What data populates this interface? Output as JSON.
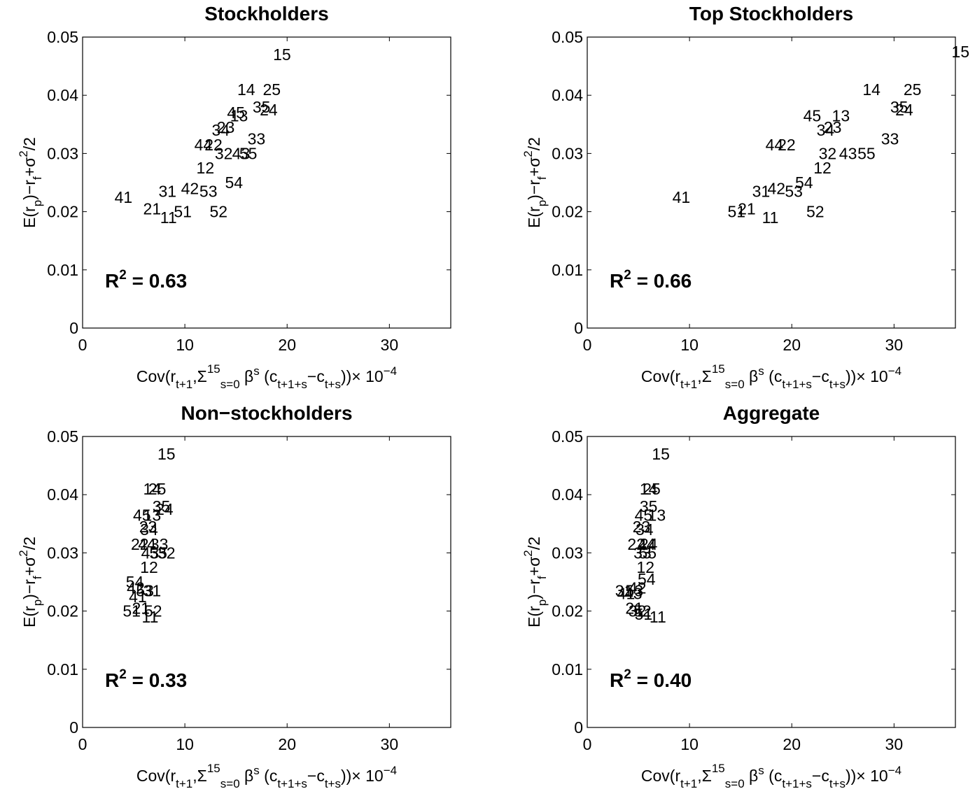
{
  "chart_data": [
    {
      "type": "scatter",
      "title": "Stockholders",
      "annotation": "R^2 = 0.63",
      "r2_label": "R",
      "r2_sup": "2",
      "r2_value": " = 0.63",
      "xlim": [
        0,
        36
      ],
      "ylim": [
        0,
        0.05
      ],
      "xticks": [
        "0",
        "10",
        "20",
        "30"
      ],
      "xtick_values": [
        0,
        10,
        20,
        30
      ],
      "yticks": [
        "0",
        "0.01",
        "0.02",
        "0.03",
        "0.04",
        "0.05"
      ],
      "ytick_values": [
        0,
        0.01,
        0.02,
        0.03,
        0.04,
        0.05
      ],
      "points": [
        {
          "label": "15",
          "x": 19.5,
          "y": 0.047
        },
        {
          "label": "14",
          "x": 16.0,
          "y": 0.041
        },
        {
          "label": "25",
          "x": 18.5,
          "y": 0.041
        },
        {
          "label": "35",
          "x": 17.5,
          "y": 0.038
        },
        {
          "label": "24",
          "x": 18.2,
          "y": 0.0375
        },
        {
          "label": "45",
          "x": 15.0,
          "y": 0.037
        },
        {
          "label": "13",
          "x": 15.3,
          "y": 0.0365
        },
        {
          "label": "23",
          "x": 14.0,
          "y": 0.0345
        },
        {
          "label": "34",
          "x": 13.5,
          "y": 0.034
        },
        {
          "label": "33",
          "x": 17.0,
          "y": 0.0325
        },
        {
          "label": "44",
          "x": 11.8,
          "y": 0.0315
        },
        {
          "label": "22",
          "x": 12.8,
          "y": 0.0315
        },
        {
          "label": "32",
          "x": 13.8,
          "y": 0.03
        },
        {
          "label": "43",
          "x": 15.5,
          "y": 0.03
        },
        {
          "label": "55",
          "x": 16.2,
          "y": 0.03
        },
        {
          "label": "12",
          "x": 12.0,
          "y": 0.0275
        },
        {
          "label": "54",
          "x": 14.8,
          "y": 0.025
        },
        {
          "label": "42",
          "x": 10.5,
          "y": 0.024
        },
        {
          "label": "31",
          "x": 8.3,
          "y": 0.0235
        },
        {
          "label": "53",
          "x": 12.3,
          "y": 0.0235
        },
        {
          "label": "41",
          "x": 4.0,
          "y": 0.0225
        },
        {
          "label": "21",
          "x": 6.8,
          "y": 0.0205
        },
        {
          "label": "51",
          "x": 9.8,
          "y": 0.02
        },
        {
          "label": "52",
          "x": 13.3,
          "y": 0.02
        },
        {
          "label": "11",
          "x": 8.4,
          "y": 0.019
        }
      ]
    },
    {
      "type": "scatter",
      "title": "Top Stockholders",
      "annotation": "R^2 = 0.66",
      "r2_label": "R",
      "r2_sup": "2",
      "r2_value": " = 0.66",
      "xlim": [
        0,
        36
      ],
      "ylim": [
        0,
        0.05
      ],
      "xticks": [
        "0",
        "10",
        "20",
        "30"
      ],
      "xtick_values": [
        0,
        10,
        20,
        30
      ],
      "yticks": [
        "0",
        "0.01",
        "0.02",
        "0.03",
        "0.04",
        "0.05"
      ],
      "ytick_values": [
        0,
        0.01,
        0.02,
        0.03,
        0.04,
        0.05
      ],
      "points": [
        {
          "label": "15",
          "x": 36.5,
          "y": 0.0475
        },
        {
          "label": "14",
          "x": 27.8,
          "y": 0.041
        },
        {
          "label": "25",
          "x": 31.8,
          "y": 0.041
        },
        {
          "label": "35",
          "x": 30.5,
          "y": 0.038
        },
        {
          "label": "24",
          "x": 31.0,
          "y": 0.0375
        },
        {
          "label": "45",
          "x": 22.0,
          "y": 0.0365
        },
        {
          "label": "13",
          "x": 24.8,
          "y": 0.0365
        },
        {
          "label": "23",
          "x": 24.0,
          "y": 0.0345
        },
        {
          "label": "34",
          "x": 23.3,
          "y": 0.034
        },
        {
          "label": "33",
          "x": 29.6,
          "y": 0.0325
        },
        {
          "label": "44",
          "x": 18.3,
          "y": 0.0315
        },
        {
          "label": "22",
          "x": 19.5,
          "y": 0.0315
        },
        {
          "label": "32",
          "x": 23.5,
          "y": 0.03
        },
        {
          "label": "43",
          "x": 25.5,
          "y": 0.03
        },
        {
          "label": "55",
          "x": 27.3,
          "y": 0.03
        },
        {
          "label": "12",
          "x": 23.0,
          "y": 0.0275
        },
        {
          "label": "54",
          "x": 21.2,
          "y": 0.025
        },
        {
          "label": "42",
          "x": 18.5,
          "y": 0.024
        },
        {
          "label": "31",
          "x": 17.0,
          "y": 0.0235
        },
        {
          "label": "53",
          "x": 20.2,
          "y": 0.0235
        },
        {
          "label": "41",
          "x": 9.2,
          "y": 0.0225
        },
        {
          "label": "21",
          "x": 15.6,
          "y": 0.0205
        },
        {
          "label": "51",
          "x": 14.6,
          "y": 0.02
        },
        {
          "label": "52",
          "x": 22.3,
          "y": 0.02
        },
        {
          "label": "11",
          "x": 17.9,
          "y": 0.019
        }
      ]
    },
    {
      "type": "scatter",
      "title": "Non−stockholders",
      "annotation": "R^2 = 0.33",
      "r2_label": "R",
      "r2_sup": "2",
      "r2_value": " = 0.33",
      "xlim": [
        0,
        36
      ],
      "ylim": [
        0,
        0.05
      ],
      "xticks": [
        "0",
        "10",
        "20",
        "30"
      ],
      "xtick_values": [
        0,
        10,
        20,
        30
      ],
      "yticks": [
        "0",
        "0.01",
        "0.02",
        "0.03",
        "0.04",
        "0.05"
      ],
      "ytick_values": [
        0,
        0.01,
        0.02,
        0.03,
        0.04,
        0.05
      ],
      "points": [
        {
          "label": "15",
          "x": 8.2,
          "y": 0.047
        },
        {
          "label": "14",
          "x": 6.8,
          "y": 0.041
        },
        {
          "label": "25",
          "x": 7.3,
          "y": 0.041
        },
        {
          "label": "35",
          "x": 7.7,
          "y": 0.038
        },
        {
          "label": "24",
          "x": 8.0,
          "y": 0.0375
        },
        {
          "label": "45",
          "x": 5.8,
          "y": 0.0365
        },
        {
          "label": "13",
          "x": 6.8,
          "y": 0.0365
        },
        {
          "label": "23",
          "x": 6.4,
          "y": 0.0345
        },
        {
          "label": "34",
          "x": 6.5,
          "y": 0.034
        },
        {
          "label": "22",
          "x": 5.6,
          "y": 0.0315
        },
        {
          "label": "44",
          "x": 6.3,
          "y": 0.0315
        },
        {
          "label": "33",
          "x": 7.5,
          "y": 0.0315
        },
        {
          "label": "43",
          "x": 6.6,
          "y": 0.03
        },
        {
          "label": "55",
          "x": 7.4,
          "y": 0.03
        },
        {
          "label": "32",
          "x": 8.2,
          "y": 0.03
        },
        {
          "label": "12",
          "x": 6.5,
          "y": 0.0275
        },
        {
          "label": "54",
          "x": 5.1,
          "y": 0.025
        },
        {
          "label": "42",
          "x": 5.2,
          "y": 0.024
        },
        {
          "label": "31",
          "x": 6.8,
          "y": 0.0235
        },
        {
          "label": "53",
          "x": 6.1,
          "y": 0.0235
        },
        {
          "label": "41",
          "x": 5.4,
          "y": 0.0225
        },
        {
          "label": "21",
          "x": 5.7,
          "y": 0.0205
        },
        {
          "label": "51",
          "x": 4.8,
          "y": 0.02
        },
        {
          "label": "52",
          "x": 6.9,
          "y": 0.02
        },
        {
          "label": "11",
          "x": 6.6,
          "y": 0.019
        }
      ]
    },
    {
      "type": "scatter",
      "title": "Aggregate",
      "annotation": "R^2 = 0.40",
      "r2_label": "R",
      "r2_sup": "2",
      "r2_value": " = 0.40",
      "xlim": [
        0,
        36
      ],
      "ylim": [
        0,
        0.05
      ],
      "xticks": [
        "0",
        "10",
        "20",
        "30"
      ],
      "xtick_values": [
        0,
        10,
        20,
        30
      ],
      "yticks": [
        "0",
        "0.01",
        "0.02",
        "0.03",
        "0.04",
        "0.05"
      ],
      "ytick_values": [
        0,
        0.01,
        0.02,
        0.03,
        0.04,
        0.05
      ],
      "points": [
        {
          "label": "15",
          "x": 7.2,
          "y": 0.047
        },
        {
          "label": "14",
          "x": 6.0,
          "y": 0.041
        },
        {
          "label": "25",
          "x": 6.3,
          "y": 0.041
        },
        {
          "label": "35",
          "x": 6.0,
          "y": 0.038
        },
        {
          "label": "45",
          "x": 5.5,
          "y": 0.0365
        },
        {
          "label": "13",
          "x": 6.8,
          "y": 0.0365
        },
        {
          "label": "23",
          "x": 5.3,
          "y": 0.0345
        },
        {
          "label": "34",
          "x": 5.6,
          "y": 0.034
        },
        {
          "label": "22",
          "x": 4.8,
          "y": 0.0315
        },
        {
          "label": "44",
          "x": 5.8,
          "y": 0.0315
        },
        {
          "label": "24",
          "x": 6.0,
          "y": 0.0315
        },
        {
          "label": "33",
          "x": 5.4,
          "y": 0.03
        },
        {
          "label": "55",
          "x": 5.9,
          "y": 0.03
        },
        {
          "label": "12",
          "x": 5.7,
          "y": 0.0275
        },
        {
          "label": "54",
          "x": 5.8,
          "y": 0.0255
        },
        {
          "label": "42",
          "x": 4.9,
          "y": 0.024
        },
        {
          "label": "31",
          "x": 3.6,
          "y": 0.0235
        },
        {
          "label": "53",
          "x": 4.6,
          "y": 0.0235
        },
        {
          "label": "41",
          "x": 3.8,
          "y": 0.023
        },
        {
          "label": "43",
          "x": 4.5,
          "y": 0.023
        },
        {
          "label": "21",
          "x": 4.6,
          "y": 0.0205
        },
        {
          "label": "32",
          "x": 4.9,
          "y": 0.02
        },
        {
          "label": "52",
          "x": 5.4,
          "y": 0.02
        },
        {
          "label": "51",
          "x": 5.5,
          "y": 0.0195
        },
        {
          "label": "11",
          "x": 6.9,
          "y": 0.019
        }
      ]
    }
  ],
  "axis_labels": {
    "x_main": "Cov(r",
    "x_sub1": "t+1",
    "x_mid": ",Σ",
    "x_sup15": "15",
    "x_subs0": "s=0",
    "x_beta": " β",
    "x_sups": "s",
    "x_c1": " (c",
    "x_sub_t1s": "t+1+s",
    "x_minus": "−c",
    "x_sub_ts": "t+s",
    "x_end": "))× 10",
    "x_exp": "−4",
    "y_main": "E(r",
    "y_sub_p": "p",
    "y_mid": ")−r",
    "y_sub_f": "f",
    "y_plus": "+σ",
    "y_sup2": "2",
    "y_end": "/2"
  }
}
